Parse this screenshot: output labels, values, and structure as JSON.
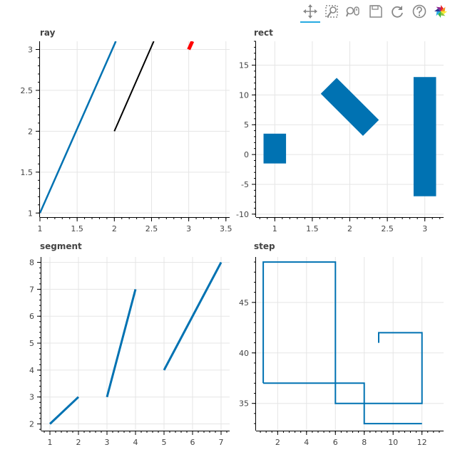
{
  "toolbar": {
    "tools": [
      {
        "name": "pan-tool",
        "icon": "pan-icon",
        "active": true
      },
      {
        "name": "box-zoom-tool",
        "icon": "box-zoom-icon",
        "active": false
      },
      {
        "name": "wheel-zoom-tool",
        "icon": "wheel-zoom-icon",
        "active": false
      },
      {
        "name": "save-tool",
        "icon": "save-icon",
        "active": false
      },
      {
        "name": "reset-tool",
        "icon": "reset-icon",
        "active": false
      },
      {
        "name": "help-tool",
        "icon": "help-icon",
        "active": false
      },
      {
        "name": "bokeh-logo",
        "icon": "bokeh-logo-icon",
        "active": false
      }
    ]
  },
  "chart_data": [
    {
      "type": "line",
      "title": "ray",
      "xlim": [
        1,
        3.55
      ],
      "ylim": [
        0.95,
        3.1
      ],
      "xticks": [
        1,
        1.5,
        2,
        2.5,
        3,
        3.5
      ],
      "xtick_labels": [
        "1",
        "1.5",
        "2",
        "2.5",
        "3",
        "3.5"
      ],
      "yticks": [
        1,
        1.5,
        2,
        2.5,
        3
      ],
      "ytick_labels": [
        "1",
        "1.5",
        "2",
        "2.5",
        "3"
      ],
      "grid": true,
      "series": [
        {
          "color": "#0072B2",
          "width": 2.5,
          "points": [
            [
              1,
              1
            ],
            [
              2.02,
              3.1
            ]
          ]
        },
        {
          "color": "#000000",
          "width": 2,
          "points": [
            [
              2,
              2
            ],
            [
              2.53,
              3.1
            ]
          ]
        },
        {
          "color": "#FF0000",
          "width": 5,
          "points": [
            [
              3.0,
              3.0
            ],
            [
              3.05,
              3.1
            ]
          ]
        }
      ]
    },
    {
      "type": "rect",
      "title": "rect",
      "xlim": [
        0.75,
        3.25
      ],
      "ylim": [
        -10.5,
        19
      ],
      "xticks": [
        1,
        1.5,
        2,
        2.5,
        3
      ],
      "xtick_labels": [
        "1",
        "1.5",
        "2",
        "2.5",
        "3"
      ],
      "yticks": [
        -10,
        -5,
        0,
        5,
        10,
        15
      ],
      "ytick_labels": [
        "-10",
        "-5",
        "0",
        "5",
        "10",
        "15"
      ],
      "grid": true,
      "color": "#0072B2",
      "rects": [
        {
          "x": 1,
          "y": 1,
          "width": 0.3,
          "height": 5,
          "angle": 0
        },
        {
          "x": 2,
          "y": 8,
          "width": 0.3,
          "height": 10,
          "angle": 45
        },
        {
          "x": 3,
          "y": 3,
          "width": 0.3,
          "height": 20,
          "angle": 0
        }
      ]
    },
    {
      "type": "line",
      "title": "segment",
      "xlim": [
        0.7,
        7.3
      ],
      "ylim": [
        1.75,
        8.2
      ],
      "xticks": [
        1,
        2,
        3,
        4,
        5,
        6,
        7
      ],
      "xtick_labels": [
        "1",
        "2",
        "3",
        "4",
        "5",
        "6",
        "7"
      ],
      "yticks": [
        2,
        3,
        4,
        5,
        6,
        7,
        8
      ],
      "ytick_labels": [
        "2",
        "3",
        "4",
        "5",
        "6",
        "7",
        "8"
      ],
      "grid": true,
      "series": [
        {
          "color": "#0072B2",
          "width": 3,
          "points": [
            [
              1,
              2
            ],
            [
              2,
              3
            ]
          ]
        },
        {
          "color": "#0072B2",
          "width": 3,
          "points": [
            [
              3,
              3
            ],
            [
              4,
              7
            ]
          ]
        },
        {
          "color": "#0072B2",
          "width": 3,
          "points": [
            [
              5,
              4
            ],
            [
              7,
              8
            ]
          ]
        }
      ]
    },
    {
      "type": "step",
      "title": "step",
      "xlim": [
        0.5,
        13.5
      ],
      "ylim": [
        32.3,
        49.5
      ],
      "xticks": [
        2,
        4,
        6,
        8,
        10,
        12
      ],
      "xtick_labels": [
        "2",
        "4",
        "6",
        "8",
        "10",
        "12"
      ],
      "yticks": [
        35,
        40,
        45
      ],
      "ytick_labels": [
        "35",
        "40",
        "45"
      ],
      "grid": true,
      "series": [
        {
          "color": "#0072B2",
          "width": 2,
          "points": [
            [
              1,
              37
            ],
            [
              1,
              49
            ],
            [
              6,
              49
            ],
            [
              6,
              35
            ],
            [
              12,
              35
            ],
            [
              12,
              42
            ],
            [
              9,
              42
            ],
            [
              9,
              41
            ]
          ]
        },
        {
          "color": "#0072B2",
          "width": 2,
          "points": [
            [
              1,
              37
            ],
            [
              8,
              37
            ],
            [
              8,
              33
            ],
            [
              12,
              33
            ]
          ]
        }
      ]
    }
  ]
}
